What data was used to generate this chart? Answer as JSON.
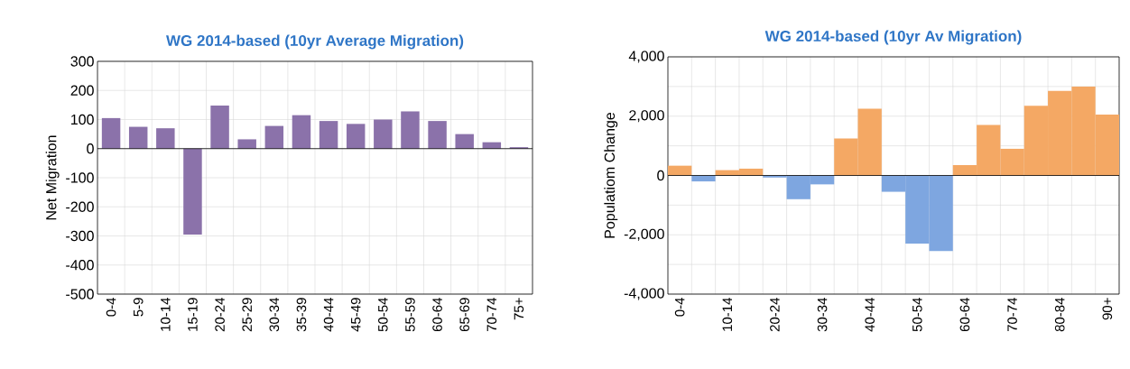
{
  "chart_data": [
    {
      "type": "bar",
      "title": "WG 2014-based (10yr Average Migration)",
      "ylabel": "Net Migration",
      "categories": [
        "0-4",
        "5-9",
        "10-14",
        "15-19",
        "20-24",
        "25-29",
        "30-34",
        "35-39",
        "40-44",
        "45-49",
        "50-54",
        "55-59",
        "60-64",
        "65-69",
        "70-74",
        "75+"
      ],
      "values": [
        105,
        75,
        70,
        -295,
        148,
        32,
        78,
        115,
        95,
        85,
        100,
        128,
        95,
        50,
        22,
        5
      ],
      "color": "#8b72aa",
      "ylim": [
        -500,
        300
      ],
      "yticks": [
        -500,
        -400,
        -300,
        -200,
        -100,
        0,
        100,
        200,
        300
      ],
      "grid": true
    },
    {
      "type": "bar",
      "title": "WG 2014-based (10yr Av Migration)",
      "ylabel": "Populatiom Change",
      "categories": [
        "0-4",
        null,
        "10-14",
        null,
        "20-24",
        null,
        "30-34",
        null,
        "40-44",
        null,
        "50-54",
        null,
        "60-64",
        null,
        "70-74",
        null,
        "80-84",
        null,
        "90+"
      ],
      "values": [
        330,
        -200,
        180,
        230,
        -70,
        -800,
        -300,
        1250,
        2250,
        -550,
        -2300,
        -2550,
        350,
        1700,
        900,
        2350,
        2850,
        3000,
        2050
      ],
      "colors": [
        "#f4a864",
        "#7ea6e0",
        "#f4a864",
        "#f4a864",
        "#7ea6e0",
        "#7ea6e0",
        "#7ea6e0",
        "#f4a864",
        "#f4a864",
        "#7ea6e0",
        "#7ea6e0",
        "#7ea6e0",
        "#f4a864",
        "#f4a864",
        "#f4a864",
        "#f4a864",
        "#f4a864",
        "#f4a864",
        "#f4a864"
      ],
      "ylim": [
        -4000,
        4000
      ],
      "yticks": [
        {
          "value": -4000,
          "label": "-4,000"
        },
        {
          "value": -3000,
          "label": null
        },
        {
          "value": -2000,
          "label": "-2,000"
        },
        {
          "value": -1000,
          "label": null
        },
        0,
        {
          "value": 1000,
          "label": null
        },
        {
          "value": 2000,
          "label": "2,000"
        },
        {
          "value": 3000,
          "label": null
        },
        {
          "value": 4000,
          "label": "4,000"
        }
      ],
      "grid": true
    }
  ]
}
